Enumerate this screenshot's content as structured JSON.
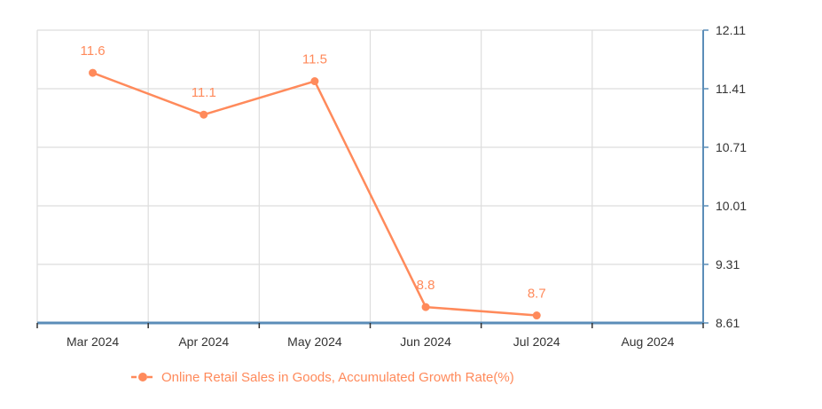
{
  "colors": {
    "series": "#FF8A5B",
    "axis": "#5B8DB8",
    "grid": "#DDDDDD",
    "tick_text": "#333333"
  },
  "chart_data": {
    "type": "line",
    "categories": [
      "Mar 2024",
      "Apr 2024",
      "May 2024",
      "Jun 2024",
      "Jul 2024",
      "Aug 2024"
    ],
    "series": [
      {
        "name": "Online Retail Sales in Goods, Accumulated Growth Rate(%)",
        "values": [
          11.6,
          11.1,
          11.5,
          8.8,
          8.7,
          null
        ],
        "data_labels": [
          "11.6",
          "11.1",
          "11.5",
          "8.8",
          "8.7",
          ""
        ]
      }
    ],
    "y_axis": {
      "position": "right",
      "ylim": [
        8.61,
        12.11
      ],
      "ticks": [
        "12.11",
        "11.41",
        "10.71",
        "10.01",
        "9.31",
        "8.61"
      ]
    },
    "grid": true,
    "legend": {
      "position": "bottom-center"
    }
  }
}
